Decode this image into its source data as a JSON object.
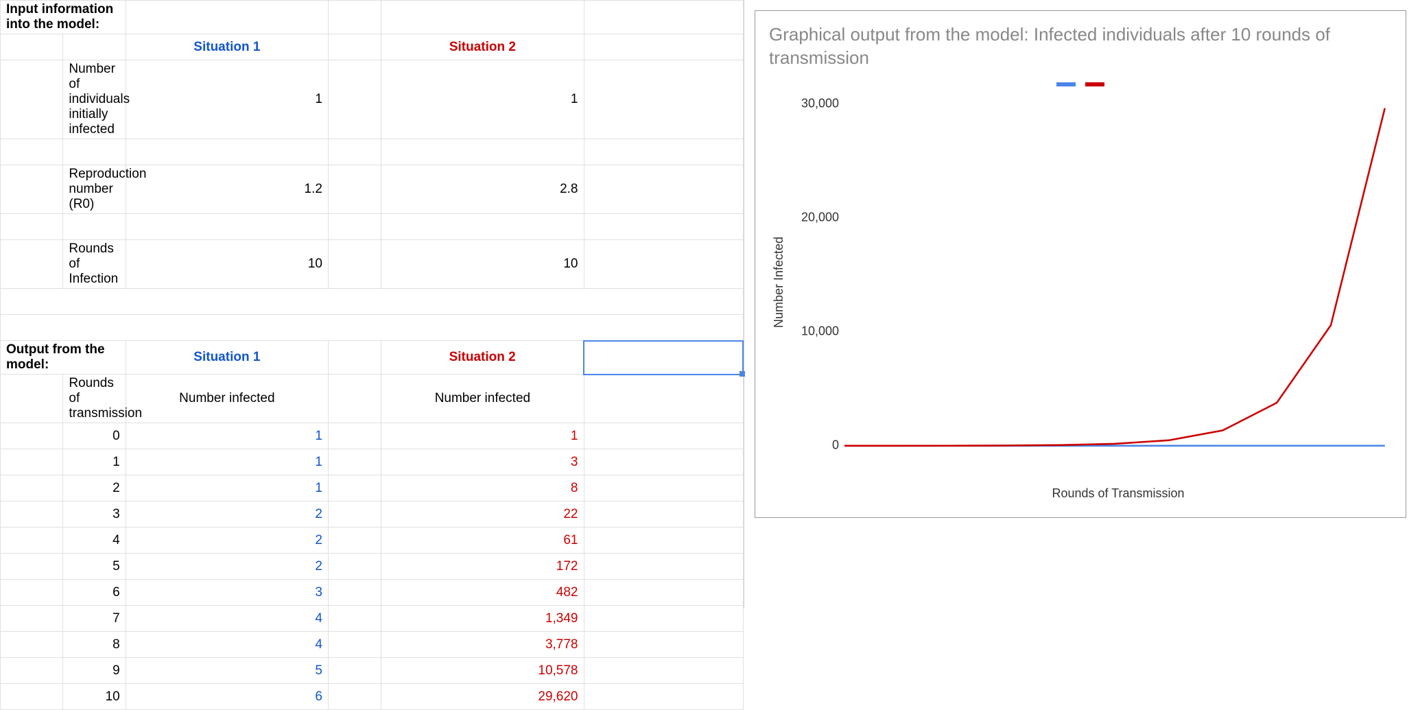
{
  "input_section_title": "Input information into the model:",
  "headers": {
    "sit1": "Situation 1",
    "sit2": "Situation 2"
  },
  "input_rows": [
    {
      "label": "Number of individuals initially infected",
      "s1": "1",
      "s2": "1"
    },
    {
      "label": "Reproduction number (R0)",
      "s1": "1.2",
      "s2": "2.8"
    },
    {
      "label": "Rounds of Infection",
      "s1": "10",
      "s2": "10"
    }
  ],
  "output_section_title": "Output from the model:",
  "output_headers": {
    "rounds": "Rounds of transmission",
    "ninf": "Number infected"
  },
  "output_rows": [
    {
      "r": "0",
      "s1": "1",
      "s2": "1"
    },
    {
      "r": "1",
      "s1": "1",
      "s2": "3"
    },
    {
      "r": "2",
      "s1": "1",
      "s2": "8"
    },
    {
      "r": "3",
      "s1": "2",
      "s2": "22"
    },
    {
      "r": "4",
      "s1": "2",
      "s2": "61"
    },
    {
      "r": "5",
      "s1": "2",
      "s2": "172"
    },
    {
      "r": "6",
      "s1": "3",
      "s2": "482"
    },
    {
      "r": "7",
      "s1": "4",
      "s2": "1,349"
    },
    {
      "r": "8",
      "s1": "4",
      "s2": "3,778"
    },
    {
      "r": "9",
      "s1": "5",
      "s2": "10,578"
    },
    {
      "r": "10",
      "s1": "6",
      "s2": "29,620"
    }
  ],
  "chart": {
    "title": "Graphical output from the model: Infected individuals after 10 rounds of transmission",
    "ylabel": "Number Infected",
    "xlabel": "Rounds of Transmission",
    "ylim": [
      0,
      30000
    ],
    "yticks": [
      0,
      10000,
      20000,
      30000
    ],
    "ytick_labels": [
      "0",
      "10,000",
      "20,000",
      "30,000"
    ],
    "xlim": [
      0,
      10
    ],
    "series": [
      {
        "name": "Situation 1",
        "color": "#4a86e8",
        "x": [
          0,
          1,
          2,
          3,
          4,
          5,
          6,
          7,
          8,
          9,
          10
        ],
        "y": [
          1,
          1,
          1,
          2,
          2,
          2,
          3,
          4,
          4,
          5,
          6
        ]
      },
      {
        "name": "Situation 2",
        "color": "#cc0000",
        "x": [
          0,
          1,
          2,
          3,
          4,
          5,
          6,
          7,
          8,
          9,
          10
        ],
        "y": [
          1,
          3,
          8,
          22,
          61,
          172,
          482,
          1349,
          3778,
          10578,
          29620
        ]
      }
    ],
    "line_width": 2.5,
    "grid_bottom_color": "#888",
    "title_color": "#888888",
    "title_fontsize": 26,
    "label_fontsize": 18,
    "background_color": "#ffffff"
  },
  "colors": {
    "blue": "#1155cc",
    "red": "#cc0000",
    "grid": "#e0e0e0",
    "selection": "#4a86e8"
  }
}
